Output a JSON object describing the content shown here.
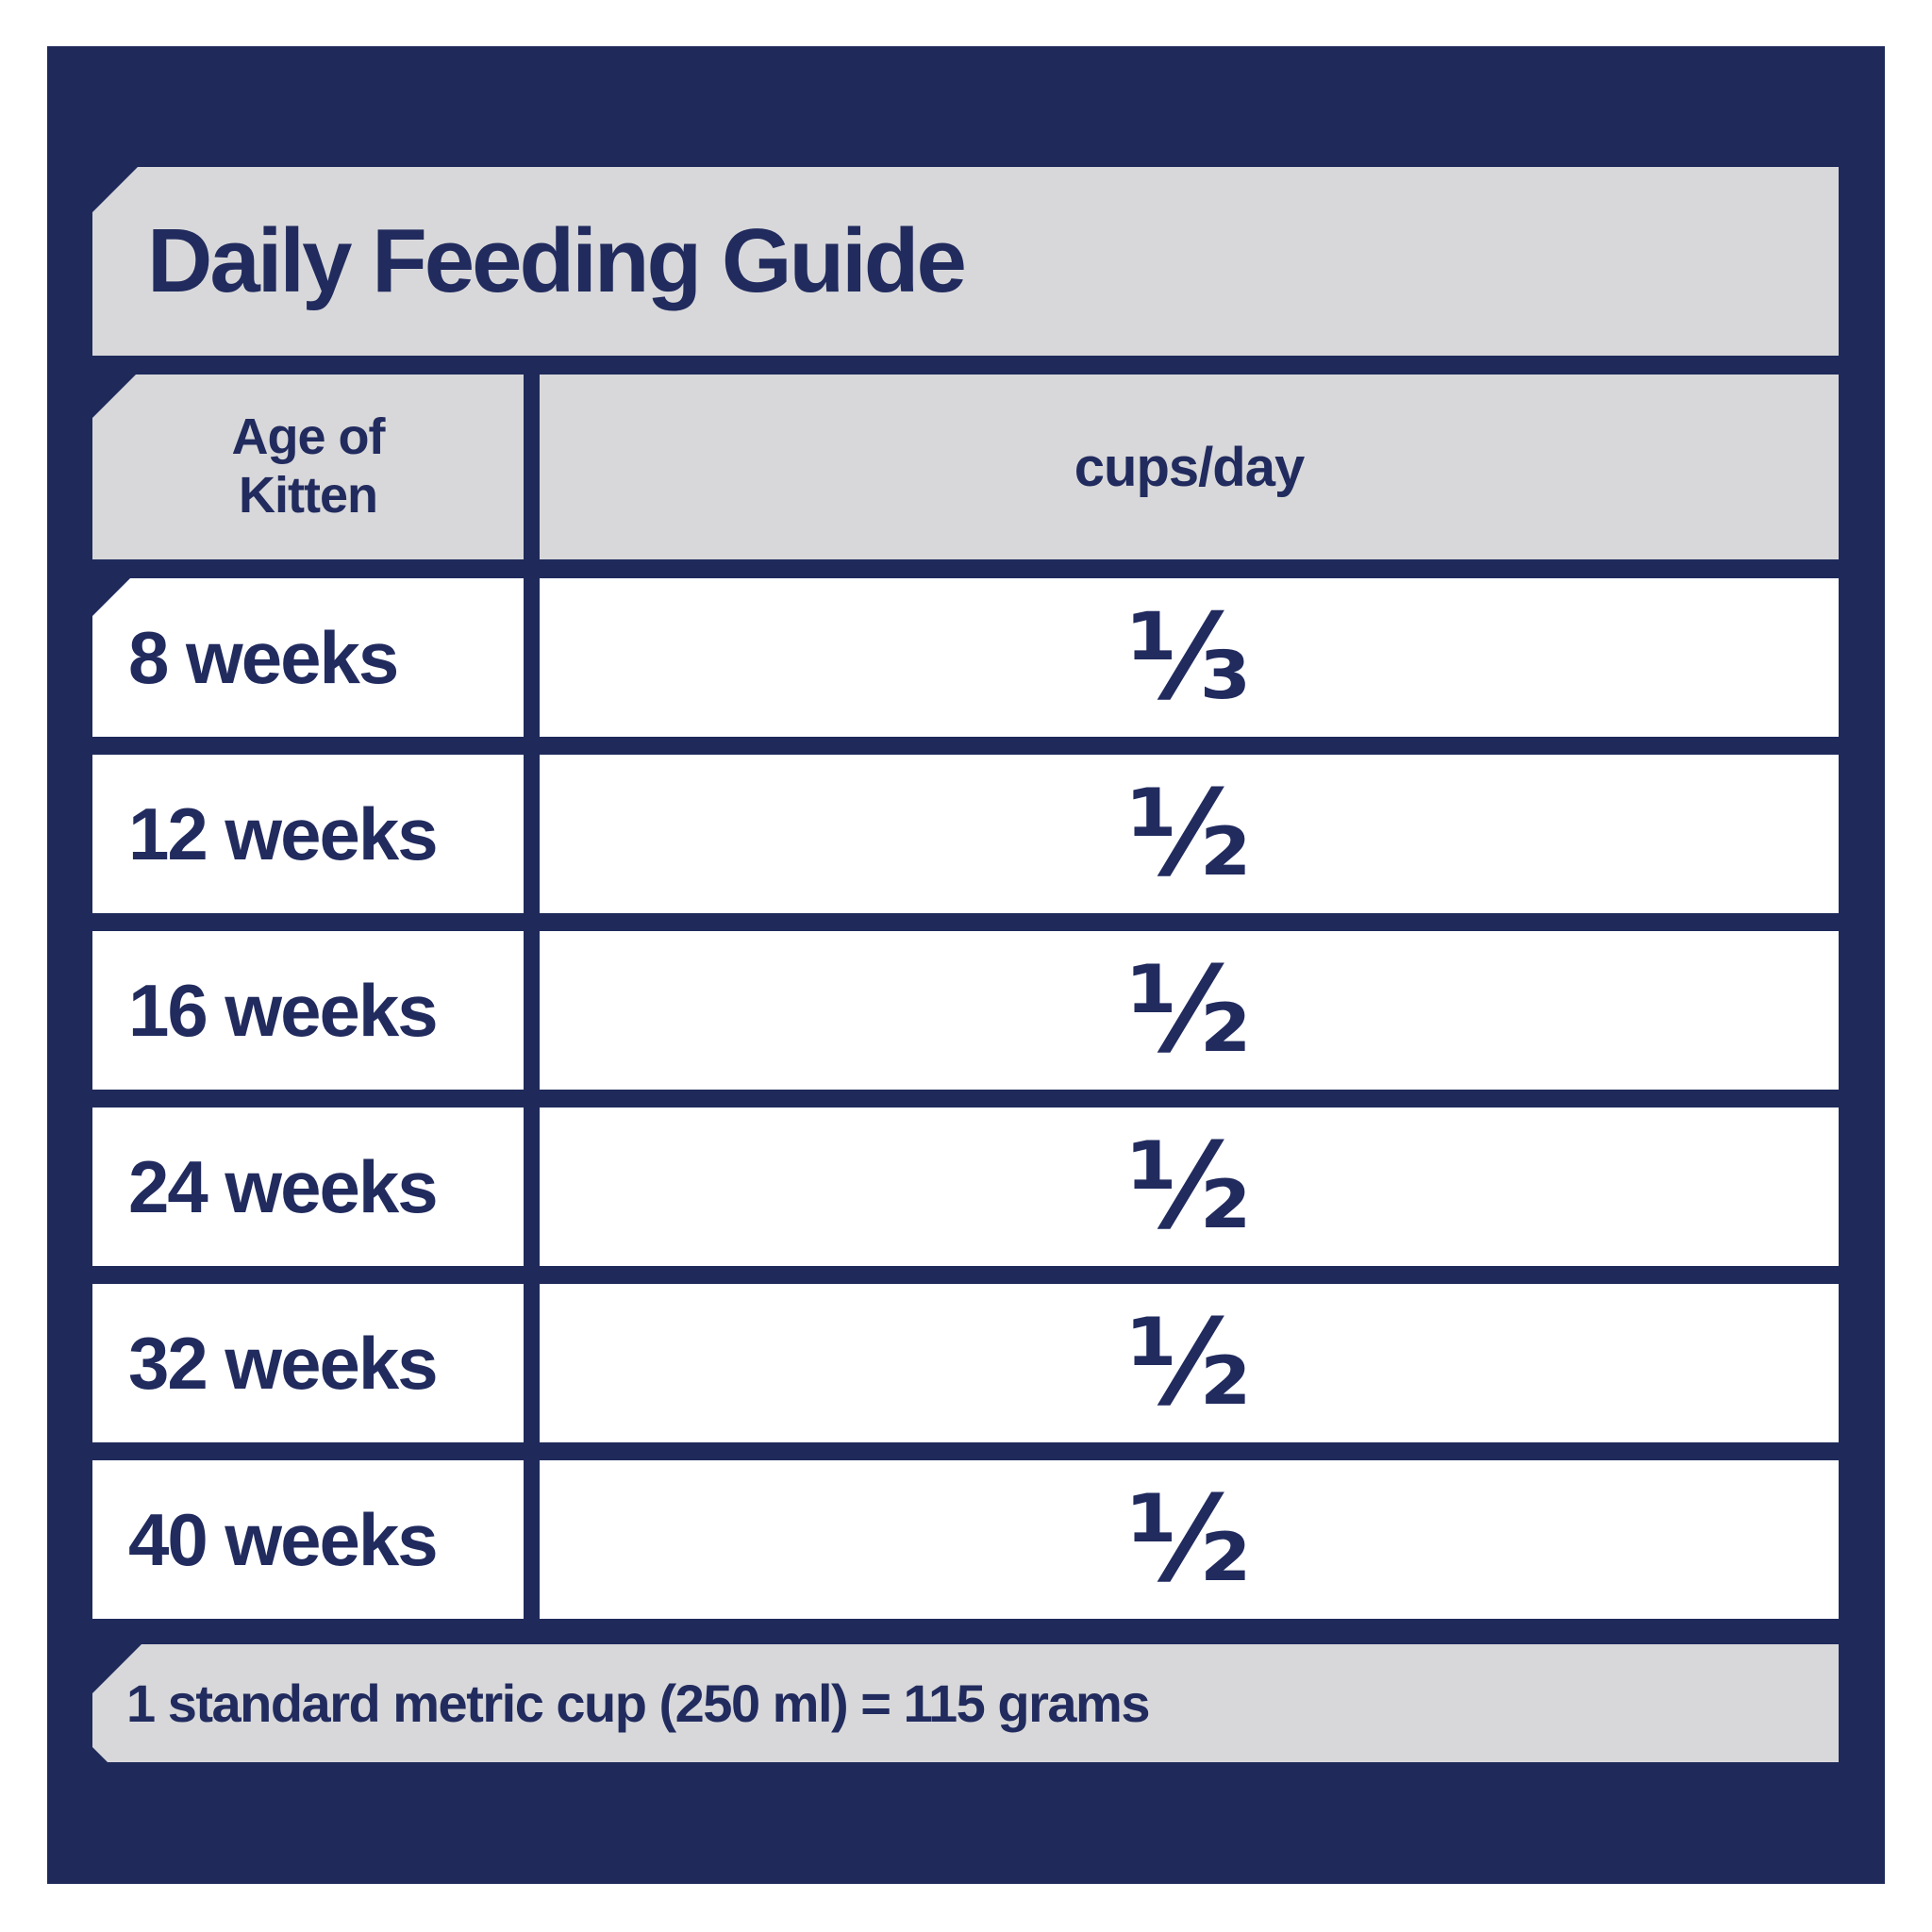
{
  "title": "Daily Feeding Guide",
  "colors": {
    "panel_navy": "#1f2a5b",
    "banner_gray": "#d8d8da",
    "row_white": "#ffffff",
    "text_navy": "#212b5e"
  },
  "table": {
    "headers": {
      "age": "Age of Kitten",
      "cups": "cups/day"
    },
    "rows": [
      {
        "age": "8 weeks",
        "cups": "⅓"
      },
      {
        "age": "12 weeks",
        "cups": "½"
      },
      {
        "age": "16 weeks",
        "cups": "½"
      },
      {
        "age": "24 weeks",
        "cups": "½"
      },
      {
        "age": "32 weeks",
        "cups": "½"
      },
      {
        "age": "40 weeks",
        "cups": "½"
      }
    ]
  },
  "footer_note": "1 standard metric cup (250 ml) = 115 grams"
}
